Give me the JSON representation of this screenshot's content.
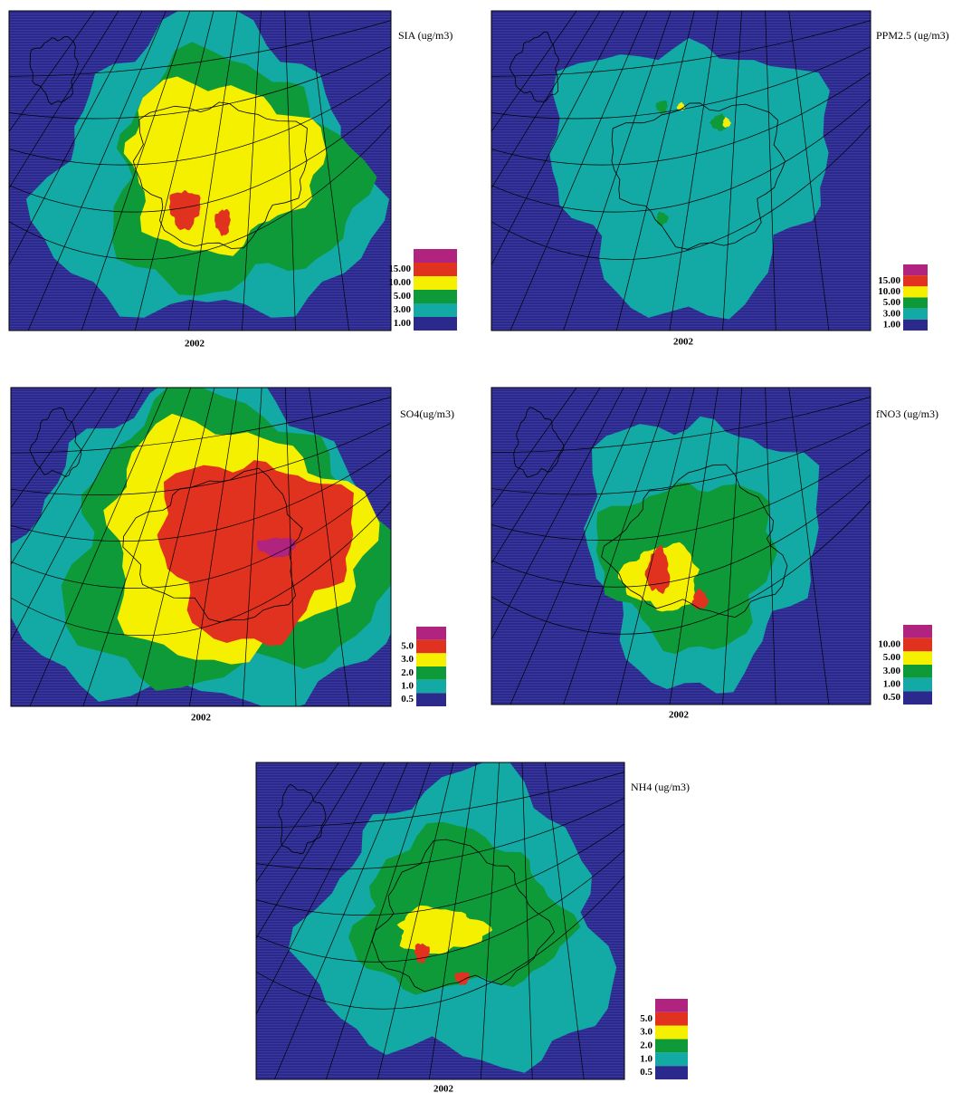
{
  "panels": [
    {
      "title": "SIA (ug/m3)",
      "year": "2002",
      "legend": [
        "15.00",
        "10.00",
        "5.00",
        "3.00",
        "1.00"
      ]
    },
    {
      "title": "PPM2.5 (ug/m3)",
      "year": "2002",
      "legend": [
        "15.00",
        "10.00",
        "5.00",
        "3.00",
        "1.00"
      ]
    },
    {
      "title": "SO4(ug/m3)",
      "year": "2002",
      "legend": [
        "5.0",
        "3.0",
        "2.0",
        "1.0",
        "0.5"
      ]
    },
    {
      "title": "fNO3 (ug/m3)",
      "year": "2002",
      "legend": [
        "10.00",
        "5.00",
        "3.00",
        "1.00",
        "0.50"
      ]
    },
    {
      "title": "NH4 (ug/m3)",
      "year": "2002",
      "legend": [
        "5.0",
        "3.0",
        "2.0",
        "1.0",
        "0.5"
      ]
    }
  ]
}
